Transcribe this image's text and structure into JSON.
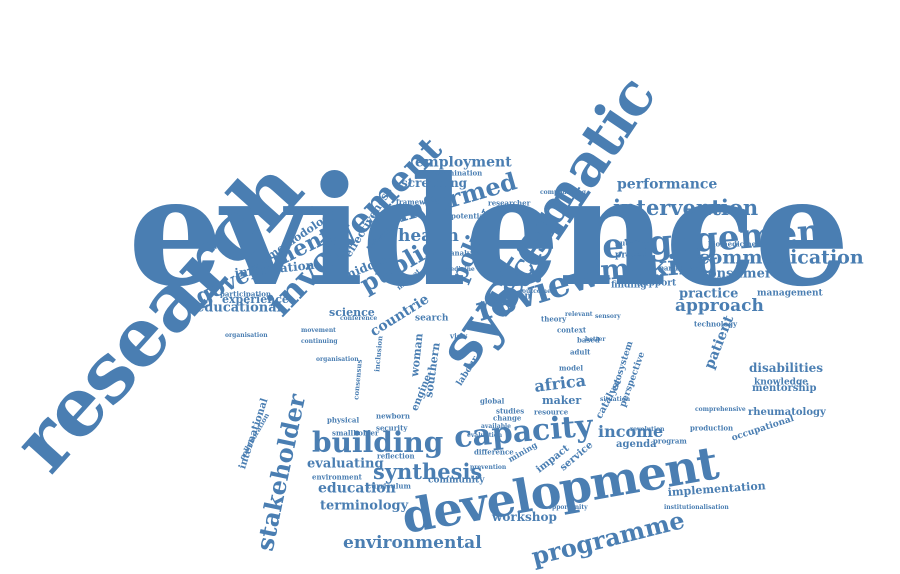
{
  "colors": {
    "word": "#4a7eb2",
    "background": "#ffffff"
  },
  "words": [
    {
      "text": "evidence",
      "tier": "huge"
    },
    {
      "text": "research",
      "tier": "big"
    },
    {
      "text": "systematic",
      "tier": "big"
    },
    {
      "text": "development",
      "tier": "big"
    },
    {
      "text": "review",
      "tier": "large"
    },
    {
      "text": "engagement",
      "tier": "large"
    },
    {
      "text": "involvement",
      "tier": "large"
    },
    {
      "text": "decision",
      "tier": "large"
    },
    {
      "text": "capacity",
      "tier": "large"
    },
    {
      "text": "building",
      "tier": "large"
    },
    {
      "text": "making",
      "tier": "medium"
    },
    {
      "text": "stakeholder",
      "tier": "medium"
    },
    {
      "text": "programme",
      "tier": "medium"
    },
    {
      "text": "public",
      "tier": "medium"
    },
    {
      "text": "policy",
      "tier": "medium"
    },
    {
      "text": "government",
      "tier": "medium"
    },
    {
      "text": "informed",
      "tier": "medium"
    },
    {
      "text": "synthesis",
      "tier": "medium"
    },
    {
      "text": "intervention",
      "tier": "medium"
    },
    {
      "text": "communication",
      "tier": "medium"
    },
    {
      "text": "approach",
      "tier": "medium"
    },
    {
      "text": "health",
      "tier": "medium"
    },
    {
      "text": "africa",
      "tier": "medium"
    },
    {
      "text": "income",
      "tier": "medium"
    },
    {
      "text": "environmental",
      "tier": "medium"
    },
    {
      "text": "performance",
      "tier": "small"
    },
    {
      "text": "employment",
      "tier": "small"
    },
    {
      "text": "consumer",
      "tier": "small"
    },
    {
      "text": "practice",
      "tier": "small"
    },
    {
      "text": "patient",
      "tier": "small"
    },
    {
      "text": "disabilities",
      "tier": "small"
    },
    {
      "text": "countrie",
      "tier": "small"
    },
    {
      "text": "educational",
      "tier": "small"
    },
    {
      "text": "education",
      "tier": "small"
    },
    {
      "text": "terminology",
      "tier": "small"
    },
    {
      "text": "evaluating",
      "tier": "small"
    },
    {
      "text": "workshop",
      "tier": "small"
    },
    {
      "text": "implementation",
      "tier": "small"
    },
    {
      "text": "information",
      "tier": "small"
    },
    {
      "text": "screening",
      "tier": "small"
    },
    {
      "text": "middle",
      "tier": "small"
    },
    {
      "text": "science",
      "tier": "small"
    },
    {
      "text": "experience",
      "tier": "small"
    },
    {
      "text": "methodology",
      "tier": "small"
    },
    {
      "text": "effectiveness",
      "tier": "small"
    },
    {
      "text": "international",
      "tier": "small"
    },
    {
      "text": "mentorship",
      "tier": "small"
    },
    {
      "text": "rheumatology",
      "tier": "small"
    },
    {
      "text": "knowledge",
      "tier": "small"
    },
    {
      "text": "management",
      "tier": "small"
    },
    {
      "text": "occupational",
      "tier": "small"
    },
    {
      "text": "community",
      "tier": "small"
    },
    {
      "text": "agenda",
      "tier": "small"
    },
    {
      "text": "impact",
      "tier": "small"
    },
    {
      "text": "service",
      "tier": "small"
    },
    {
      "text": "southern",
      "tier": "small"
    },
    {
      "text": "woman",
      "tier": "small"
    },
    {
      "text": "maker",
      "tier": "small"
    },
    {
      "text": "engine",
      "tier": "small"
    },
    {
      "text": "project",
      "tier": "small"
    },
    {
      "text": "finding",
      "tier": "small"
    },
    {
      "text": "support",
      "tier": "small"
    },
    {
      "text": "urban",
      "tier": "small"
    },
    {
      "text": "search",
      "tier": "small"
    },
    {
      "text": "dissemination",
      "tier": "tiny"
    },
    {
      "text": "participation",
      "tier": "tiny"
    },
    {
      "text": "collaboration",
      "tier": "tiny"
    },
    {
      "text": "smallholder",
      "tier": "tiny"
    },
    {
      "text": "reflection",
      "tier": "tiny"
    },
    {
      "text": "environment",
      "tier": "tiny"
    },
    {
      "text": "curriculum",
      "tier": "tiny"
    },
    {
      "text": "physical",
      "tier": "tiny"
    },
    {
      "text": "security",
      "tier": "tiny"
    },
    {
      "text": "newborn",
      "tier": "tiny"
    },
    {
      "text": "difference",
      "tier": "tiny"
    },
    {
      "text": "mining",
      "tier": "tiny"
    },
    {
      "text": "change",
      "tier": "tiny"
    },
    {
      "text": "labour",
      "tier": "tiny"
    },
    {
      "text": "catalyst",
      "tier": "tiny"
    },
    {
      "text": "perspective",
      "tier": "tiny"
    },
    {
      "text": "ecosystem",
      "tier": "tiny"
    },
    {
      "text": "production",
      "tier": "tiny"
    },
    {
      "text": "program",
      "tier": "tiny"
    },
    {
      "text": "comprehensive",
      "tier": "tiny"
    },
    {
      "text": "institutionalisation",
      "tier": "tiny"
    },
    {
      "text": "technology",
      "tier": "tiny"
    },
    {
      "text": "biomedicine",
      "tier": "tiny"
    },
    {
      "text": "participant",
      "tier": "tiny"
    },
    {
      "text": "nutrition",
      "tier": "tiny"
    },
    {
      "text": "organisation",
      "tier": "tiny"
    },
    {
      "text": "framework",
      "tier": "tiny"
    },
    {
      "text": "potential",
      "tier": "tiny"
    },
    {
      "text": "researcher",
      "tier": "tiny"
    },
    {
      "text": "analysis",
      "tier": "tiny"
    },
    {
      "text": "network",
      "tier": "tiny"
    },
    {
      "text": "medicine",
      "tier": "tiny"
    },
    {
      "text": "conference",
      "tier": "tiny"
    },
    {
      "text": "consensus",
      "tier": "tiny"
    },
    {
      "text": "inclusion",
      "tier": "tiny"
    },
    {
      "text": "market",
      "tier": "tiny"
    },
    {
      "text": "global",
      "tier": "tiny"
    },
    {
      "text": "context",
      "tier": "tiny"
    },
    {
      "text": "based",
      "tier": "tiny"
    },
    {
      "text": "adult",
      "tier": "tiny"
    },
    {
      "text": "model",
      "tier": "tiny"
    },
    {
      "text": "theory",
      "tier": "tiny"
    },
    {
      "text": "relevant",
      "tier": "tiny"
    },
    {
      "text": "sensory",
      "tier": "tiny"
    },
    {
      "text": "resource",
      "tier": "tiny"
    },
    {
      "text": "opportunity",
      "tier": "tiny"
    },
    {
      "text": "evaluation",
      "tier": "tiny"
    },
    {
      "text": "prevention",
      "tier": "tiny"
    },
    {
      "text": "studies",
      "tier": "tiny"
    },
    {
      "text": "view",
      "tier": "tiny"
    },
    {
      "text": "outcome",
      "tier": "tiny"
    },
    {
      "text": "continuing",
      "tier": "tiny"
    },
    {
      "text": "movement",
      "tier": "tiny"
    },
    {
      "text": "situation",
      "tier": "tiny"
    },
    {
      "text": "revolution",
      "tier": "tiny"
    },
    {
      "text": "available",
      "tier": "tiny"
    },
    {
      "text": "organisation",
      "tier": "tiny"
    },
    {
      "text": "compounding",
      "tier": "tiny"
    },
    {
      "text": "better",
      "tier": "tiny"
    }
  ]
}
